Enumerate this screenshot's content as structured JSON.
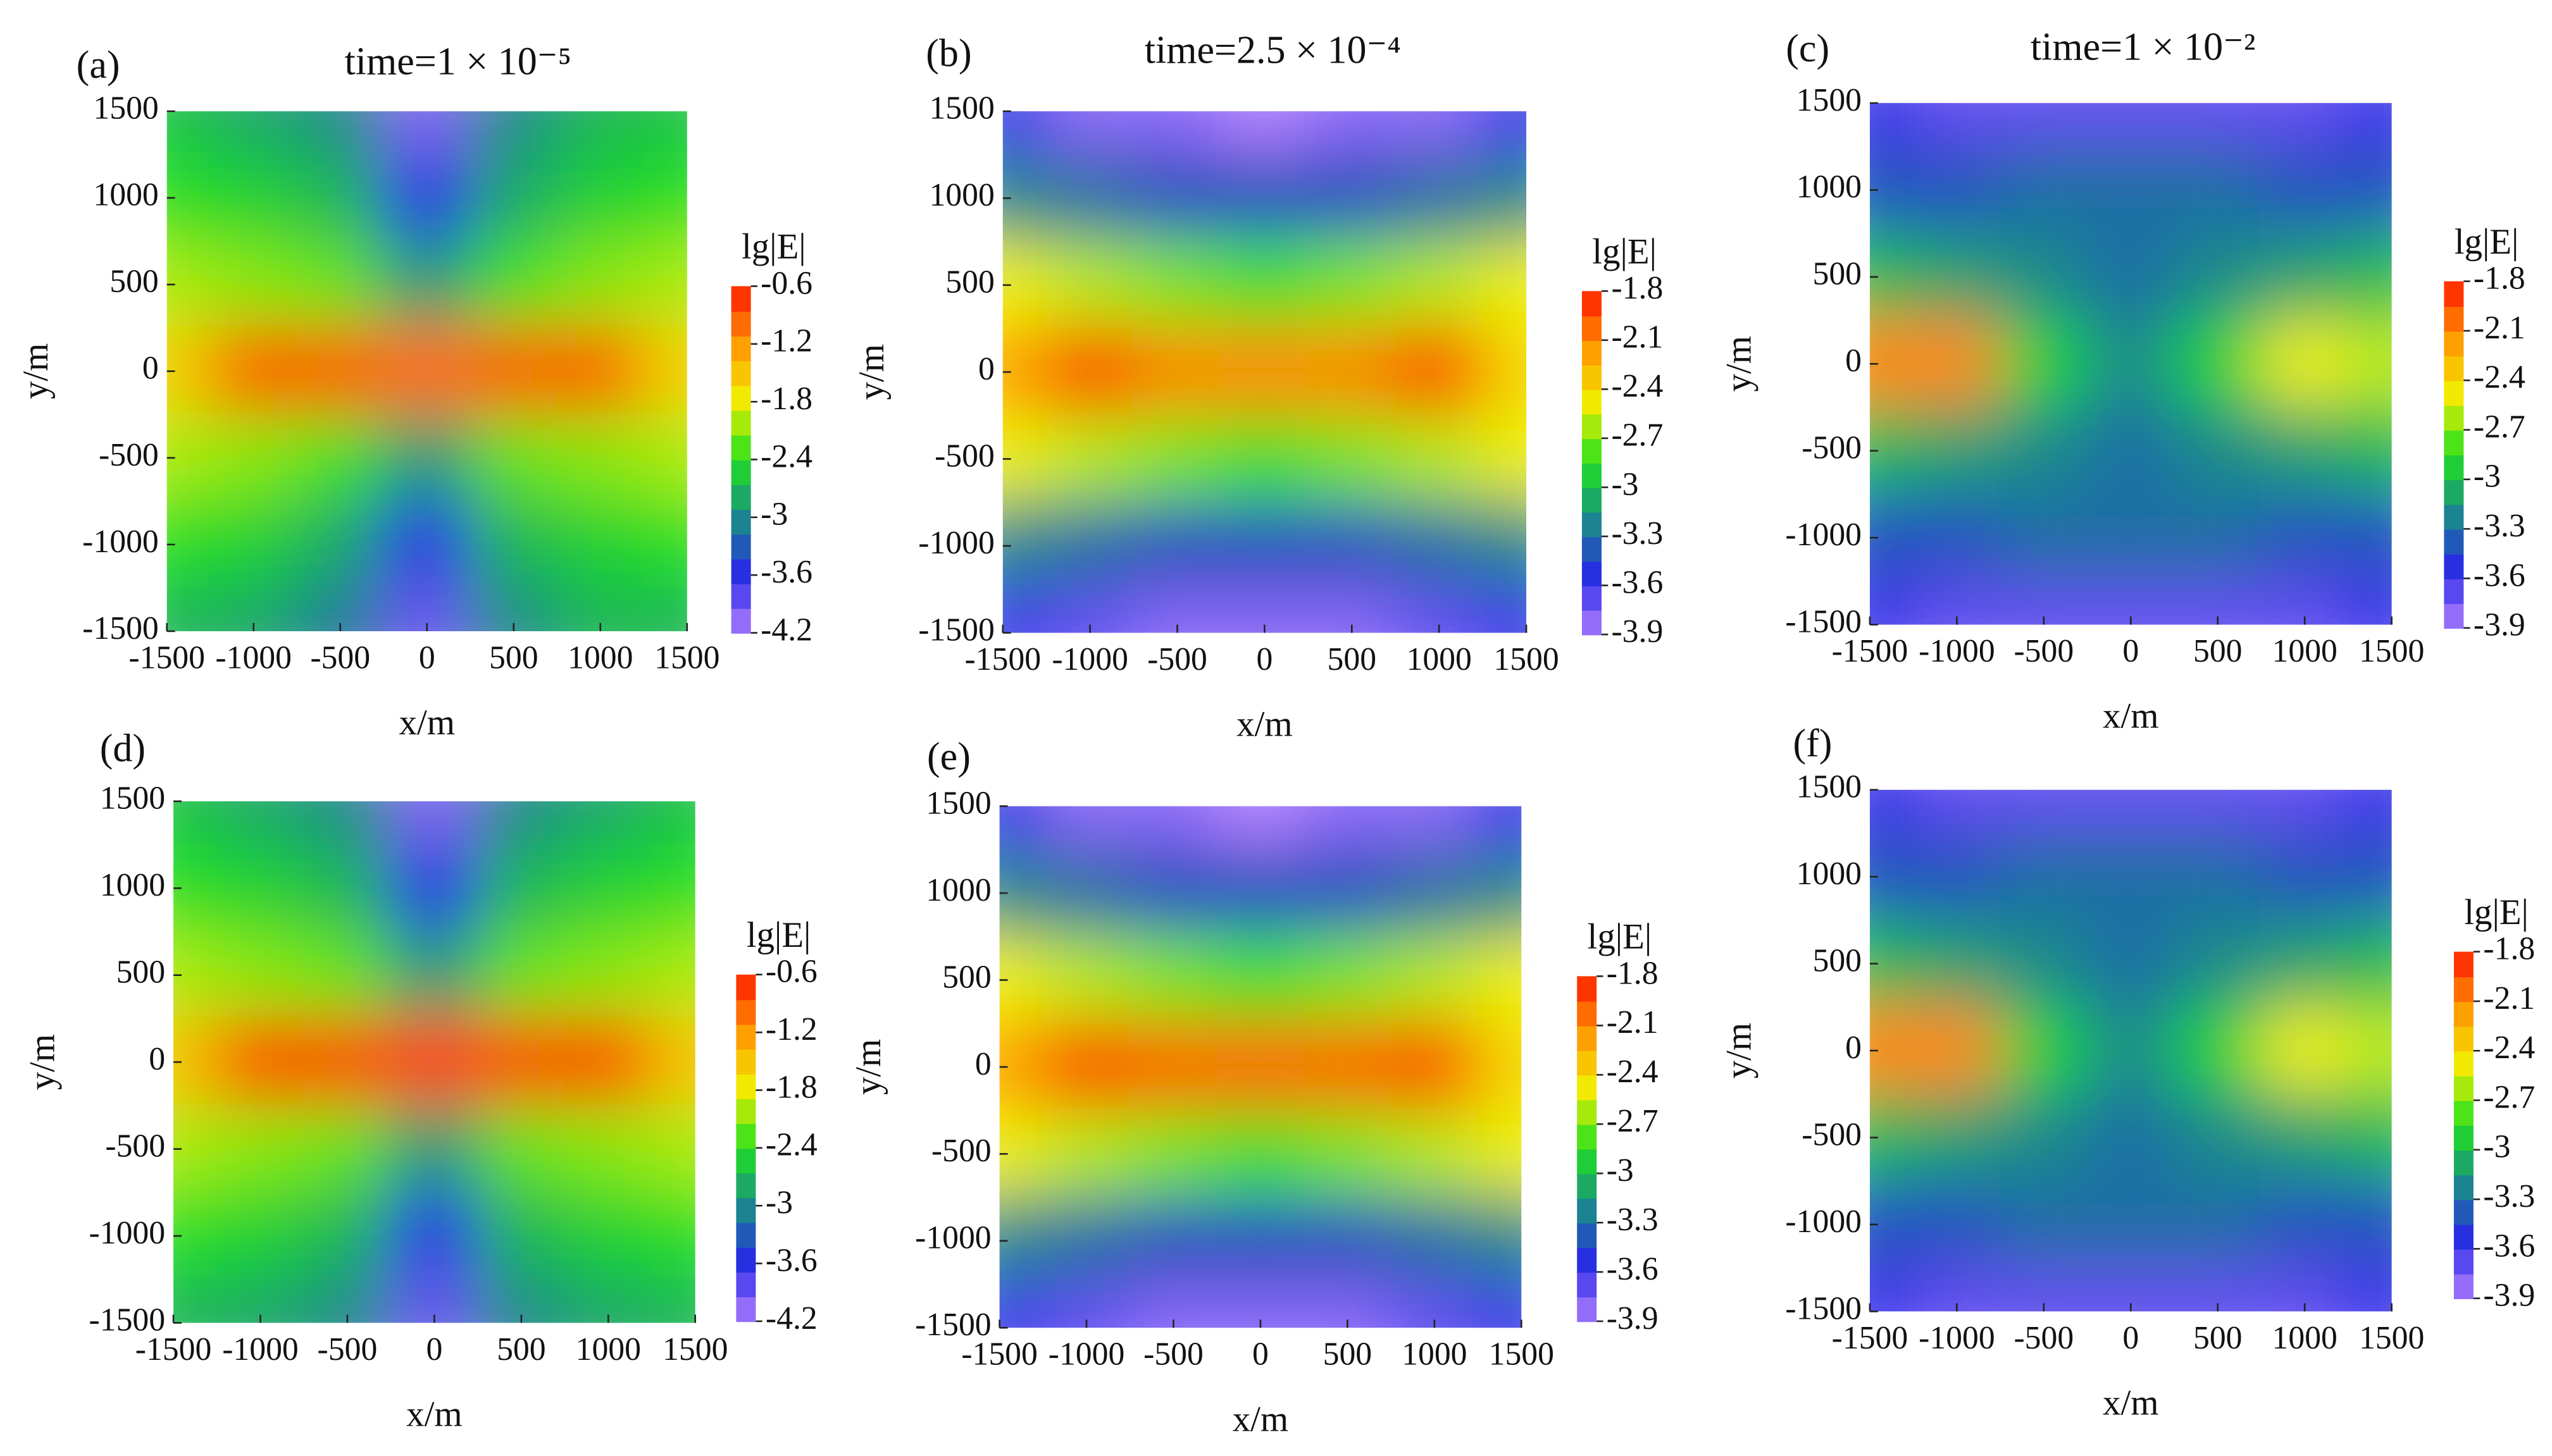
{
  "chart_data": [
    {
      "type": "contour",
      "label": "(a)",
      "title": "time=1 × 10⁻⁵",
      "xlabel": "x/m",
      "ylabel": "y/m",
      "colorbar_label": "lg|E|",
      "xlim": [
        -1500,
        1500
      ],
      "ylim": [
        -1500,
        1500
      ],
      "xticks": [
        -1500,
        -1000,
        -500,
        0,
        500,
        1000,
        1500
      ],
      "yticks": [
        -1500,
        -1000,
        -500,
        0,
        500,
        1000,
        1500
      ],
      "x": [
        -1500,
        -1000,
        -500,
        0,
        500,
        1000,
        1500
      ],
      "y": [
        1500,
        1000,
        500,
        0,
        -500,
        -1000,
        -1500
      ],
      "z": [
        [
          -2.6,
          -2.8,
          -3.0,
          -4.0,
          -3.0,
          -2.7,
          -2.6
        ],
        [
          -2.4,
          -2.5,
          -2.7,
          -3.6,
          -2.8,
          -2.5,
          -2.4
        ],
        [
          -2.0,
          -2.1,
          -2.2,
          -2.9,
          -2.3,
          -2.1,
          -2.0
        ],
        [
          -1.6,
          -0.9,
          -0.9,
          -1.0,
          -0.9,
          -0.9,
          -1.6
        ],
        [
          -2.0,
          -2.1,
          -2.3,
          -2.9,
          -2.2,
          -2.1,
          -2.0
        ],
        [
          -2.4,
          -2.5,
          -2.8,
          -3.6,
          -2.7,
          -2.5,
          -2.4
        ],
        [
          -2.7,
          -2.8,
          -3.1,
          -3.9,
          -3.0,
          -2.7,
          -2.7
        ]
      ],
      "zlim": [
        -4.2,
        -0.6
      ],
      "zticks": [
        -0.6,
        -1.2,
        -1.8,
        -2.4,
        -3,
        -3.6,
        -4.2
      ],
      "colors": [
        "#b080ff",
        "#2828e8",
        "#1a8a8a",
        "#20e020",
        "#f0f000",
        "#ff9a00",
        "#ff1a00"
      ]
    },
    {
      "type": "contour",
      "label": "(b)",
      "title": "time=2.5 × 10⁻⁴",
      "xlabel": "x/m",
      "ylabel": "y/m",
      "colorbar_label": "lg|E|",
      "xlim": [
        -1500,
        1500
      ],
      "ylim": [
        -1500,
        1500
      ],
      "xticks": [
        -1500,
        -1000,
        -500,
        0,
        500,
        1000,
        1500
      ],
      "yticks": [
        -1500,
        -1000,
        -500,
        0,
        500,
        1000,
        1500
      ],
      "x": [
        -1500,
        -1000,
        -500,
        0,
        500,
        1000,
        1500
      ],
      "y": [
        1500,
        1000,
        500,
        0,
        -500,
        -1000,
        -1500
      ],
      "z": [
        [
          -3.6,
          -3.8,
          -3.8,
          -3.9,
          -3.8,
          -3.8,
          -3.6
        ],
        [
          -3.2,
          -3.3,
          -3.4,
          -3.4,
          -3.4,
          -3.3,
          -3.2
        ],
        [
          -2.5,
          -2.6,
          -2.7,
          -2.8,
          -2.7,
          -2.6,
          -2.5
        ],
        [
          -2.2,
          -1.9,
          -2.1,
          -2.1,
          -2.1,
          -1.9,
          -2.4
        ],
        [
          -2.5,
          -2.6,
          -2.7,
          -2.8,
          -2.7,
          -2.6,
          -2.5
        ],
        [
          -3.2,
          -3.3,
          -3.4,
          -3.4,
          -3.4,
          -3.3,
          -3.2
        ],
        [
          -3.6,
          -3.7,
          -3.8,
          -3.8,
          -3.8,
          -3.7,
          -3.6
        ]
      ],
      "zlim": [
        -3.9,
        -1.8
      ],
      "zticks": [
        -1.8,
        -2.1,
        -2.4,
        -2.7,
        -3,
        -3.3,
        -3.6,
        -3.9
      ],
      "colors": [
        "#b080ff",
        "#2828e8",
        "#1a8a8a",
        "#20e020",
        "#f0f000",
        "#ff9a00",
        "#ff1a00"
      ]
    },
    {
      "type": "contour",
      "label": "(c)",
      "title": "time=1 × 10⁻²",
      "xlabel": "x/m",
      "ylabel": "y/m",
      "colorbar_label": "lg|E|",
      "xlim": [
        -1500,
        1500
      ],
      "ylim": [
        -1500,
        1500
      ],
      "xticks": [
        -1500,
        -1000,
        -500,
        0,
        500,
        1000,
        1500
      ],
      "yticks": [
        -1500,
        -1000,
        -500,
        0,
        500,
        1000,
        1500
      ],
      "x": [
        -1500,
        -1000,
        -500,
        0,
        500,
        1000,
        1500
      ],
      "y": [
        1500,
        1000,
        500,
        0,
        -500,
        -1000,
        -1500
      ],
      "z": [
        [
          -3.6,
          -3.7,
          -3.7,
          -3.7,
          -3.7,
          -3.7,
          -3.6
        ],
        [
          -3.4,
          -3.4,
          -3.3,
          -3.3,
          -3.3,
          -3.4,
          -3.4
        ],
        [
          -3.0,
          -3.1,
          -3.2,
          -3.3,
          -3.2,
          -3.1,
          -3.0
        ],
        [
          -2.1,
          -2.1,
          -2.9,
          -3.2,
          -2.9,
          -2.5,
          -2.6
        ],
        [
          -3.0,
          -3.1,
          -3.2,
          -3.3,
          -3.2,
          -3.1,
          -3.0
        ],
        [
          -3.4,
          -3.4,
          -3.3,
          -3.3,
          -3.3,
          -3.4,
          -3.4
        ],
        [
          -3.6,
          -3.7,
          -3.7,
          -3.7,
          -3.7,
          -3.7,
          -3.6
        ]
      ],
      "zlim": [
        -3.9,
        -1.8
      ],
      "zticks": [
        -1.8,
        -2.1,
        -2.4,
        -2.7,
        -3,
        -3.3,
        -3.6,
        -3.9
      ],
      "colors": [
        "#b080ff",
        "#2828e8",
        "#1a8a8a",
        "#20e020",
        "#f0f000",
        "#ff9a00",
        "#ff1a00"
      ]
    },
    {
      "type": "contour",
      "label": "(d)",
      "xlabel": "x/m",
      "ylabel": "y/m",
      "colorbar_label": "lg|E|",
      "xlim": [
        -1500,
        1500
      ],
      "ylim": [
        -1500,
        1500
      ],
      "xticks": [
        -1500,
        -1000,
        -500,
        0,
        500,
        1000,
        1500
      ],
      "yticks": [
        -1500,
        -1000,
        -500,
        0,
        500,
        1000,
        1500
      ],
      "x": [
        -1500,
        -1000,
        -500,
        0,
        500,
        1000,
        1500
      ],
      "y": [
        1500,
        1000,
        500,
        0,
        -500,
        -1000,
        -1500
      ],
      "z": [
        [
          -2.6,
          -2.8,
          -3.0,
          -4.0,
          -3.0,
          -2.8,
          -2.6
        ],
        [
          -2.4,
          -2.5,
          -2.7,
          -3.6,
          -2.7,
          -2.5,
          -2.4
        ],
        [
          -2.0,
          -2.1,
          -2.2,
          -2.9,
          -2.2,
          -2.1,
          -2.0
        ],
        [
          -1.5,
          -0.8,
          -0.8,
          -0.8,
          -0.8,
          -0.8,
          -1.5
        ],
        [
          -2.0,
          -2.1,
          -2.2,
          -2.9,
          -2.2,
          -2.1,
          -2.0
        ],
        [
          -2.4,
          -2.5,
          -2.7,
          -3.6,
          -2.7,
          -2.5,
          -2.4
        ],
        [
          -2.7,
          -2.8,
          -3.0,
          -3.9,
          -3.0,
          -2.8,
          -2.7
        ]
      ],
      "zlim": [
        -4.2,
        -0.6
      ],
      "zticks": [
        -0.6,
        -1.2,
        -1.8,
        -2.4,
        -3,
        -3.6,
        -4.2
      ],
      "colors": [
        "#b080ff",
        "#2828e8",
        "#1a8a8a",
        "#20e020",
        "#f0f000",
        "#ff9a00",
        "#ff1a00"
      ]
    },
    {
      "type": "contour",
      "label": "(e)",
      "xlabel": "x/m",
      "ylabel": "y/m",
      "colorbar_label": "lg|E|",
      "xlim": [
        -1500,
        1500
      ],
      "ylim": [
        -1500,
        1500
      ],
      "xticks": [
        -1500,
        -1000,
        -500,
        0,
        500,
        1000,
        1500
      ],
      "yticks": [
        -1500,
        -1000,
        -500,
        0,
        500,
        1000,
        1500
      ],
      "x": [
        -1500,
        -1000,
        -500,
        0,
        500,
        1000,
        1500
      ],
      "y": [
        1500,
        1000,
        500,
        0,
        -500,
        -1000,
        -1500
      ],
      "z": [
        [
          -3.6,
          -3.8,
          -3.8,
          -3.9,
          -3.8,
          -3.8,
          -3.6
        ],
        [
          -3.2,
          -3.3,
          -3.4,
          -3.4,
          -3.4,
          -3.3,
          -3.2
        ],
        [
          -2.5,
          -2.6,
          -2.7,
          -2.8,
          -2.7,
          -2.6,
          -2.5
        ],
        [
          -2.2,
          -1.9,
          -2.0,
          -2.0,
          -2.0,
          -1.9,
          -2.4
        ],
        [
          -2.5,
          -2.6,
          -2.7,
          -2.8,
          -2.7,
          -2.6,
          -2.5
        ],
        [
          -3.2,
          -3.3,
          -3.4,
          -3.4,
          -3.4,
          -3.3,
          -3.2
        ],
        [
          -3.6,
          -3.7,
          -3.8,
          -3.8,
          -3.8,
          -3.7,
          -3.6
        ]
      ],
      "zlim": [
        -3.9,
        -1.8
      ],
      "zticks": [
        -1.8,
        -2.1,
        -2.4,
        -2.7,
        -3,
        -3.3,
        -3.6,
        -3.9
      ],
      "colors": [
        "#b080ff",
        "#2828e8",
        "#1a8a8a",
        "#20e020",
        "#f0f000",
        "#ff9a00",
        "#ff1a00"
      ]
    },
    {
      "type": "contour",
      "label": "(f)",
      "xlabel": "x/m",
      "ylabel": "y/m",
      "colorbar_label": "lg|E|",
      "xlim": [
        -1500,
        1500
      ],
      "ylim": [
        -1500,
        1500
      ],
      "xticks": [
        -1500,
        -1000,
        -500,
        0,
        500,
        1000,
        1500
      ],
      "yticks": [
        -1500,
        -1000,
        -500,
        0,
        500,
        1000,
        1500
      ],
      "x": [
        -1500,
        -1000,
        -500,
        0,
        500,
        1000,
        1500
      ],
      "y": [
        1500,
        1000,
        500,
        0,
        -500,
        -1000,
        -1500
      ],
      "z": [
        [
          -3.6,
          -3.7,
          -3.7,
          -3.7,
          -3.7,
          -3.7,
          -3.6
        ],
        [
          -3.4,
          -3.4,
          -3.3,
          -3.3,
          -3.3,
          -3.4,
          -3.4
        ],
        [
          -3.0,
          -3.1,
          -3.2,
          -3.3,
          -3.2,
          -3.1,
          -3.0
        ],
        [
          -2.1,
          -2.1,
          -2.9,
          -3.2,
          -2.9,
          -2.5,
          -2.6
        ],
        [
          -3.0,
          -3.1,
          -3.2,
          -3.3,
          -3.2,
          -3.1,
          -3.0
        ],
        [
          -3.4,
          -3.4,
          -3.3,
          -3.3,
          -3.3,
          -3.4,
          -3.4
        ],
        [
          -3.6,
          -3.7,
          -3.7,
          -3.7,
          -3.7,
          -3.7,
          -3.6
        ]
      ],
      "zlim": [
        -3.9,
        -1.8
      ],
      "zticks": [
        -1.8,
        -2.1,
        -2.4,
        -2.7,
        -3,
        -3.3,
        -3.6,
        -3.9
      ],
      "colors": [
        "#b080ff",
        "#2828e8",
        "#1a8a8a",
        "#20e020",
        "#f0f000",
        "#ff9a00",
        "#ff1a00"
      ]
    }
  ]
}
